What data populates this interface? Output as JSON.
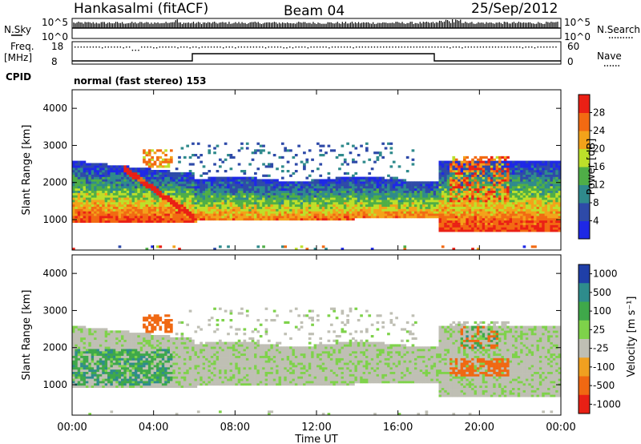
{
  "header": {
    "station": "Hankasalmi (fitACF)",
    "beam": "Beam 04",
    "date": "25/Sep/2012"
  },
  "noise_panel": {
    "left_label": "N.Sky",
    "right_label": "N.Search",
    "left_ticks": [
      "10^5",
      "10^0"
    ],
    "right_ticks": [
      "10^5",
      "10^0"
    ]
  },
  "freq_panel": {
    "label_line1": "Freq.",
    "label_line2": "[MHz]",
    "right_label": "Nave",
    "left_ticks": [
      "18",
      "8"
    ],
    "right_ticks": [
      "60",
      "0"
    ]
  },
  "cpid": {
    "label": "CPID",
    "mode": "normal (fast stereo) 153"
  },
  "chart_data": [
    {
      "type": "heatmap",
      "name": "power",
      "xlabel": "",
      "ylabel": "Slant Range [km]",
      "ylim": [
        180,
        4500
      ],
      "yticks": [
        "1000",
        "2000",
        "3000",
        "4000"
      ],
      "colorbar": {
        "label": "Power [dB]",
        "ticks": [
          "4",
          "8",
          "12",
          "16",
          "20",
          "24",
          "28"
        ],
        "range": [
          0,
          30
        ],
        "colors": [
          "#1e28e6",
          "#2e4aa8",
          "#2f8a8c",
          "#4fae47",
          "#bde02a",
          "#f3a21a",
          "#f26a12",
          "#ea2015"
        ]
      }
    },
    {
      "type": "heatmap",
      "name": "velocity",
      "xlabel": "Time UT",
      "ylabel": "Slant Range [km]",
      "ylim": [
        180,
        4500
      ],
      "yticks": [
        "1000",
        "2000",
        "3000",
        "4000"
      ],
      "xticks": [
        "00:00",
        "04:00",
        "08:00",
        "12:00",
        "16:00",
        "20:00",
        "00:00"
      ],
      "colorbar": {
        "label": "Velocity [m s⁻¹]",
        "ticks": [
          "1000",
          "500",
          "100",
          "25",
          "-25",
          "-100",
          "-500",
          "-1000"
        ],
        "colors": [
          "#1f3fa8",
          "#2e8c8c",
          "#3fa84a",
          "#7ed24a",
          "#bfbfb4",
          "#f0a020",
          "#f06812",
          "#e82015"
        ]
      }
    }
  ]
}
